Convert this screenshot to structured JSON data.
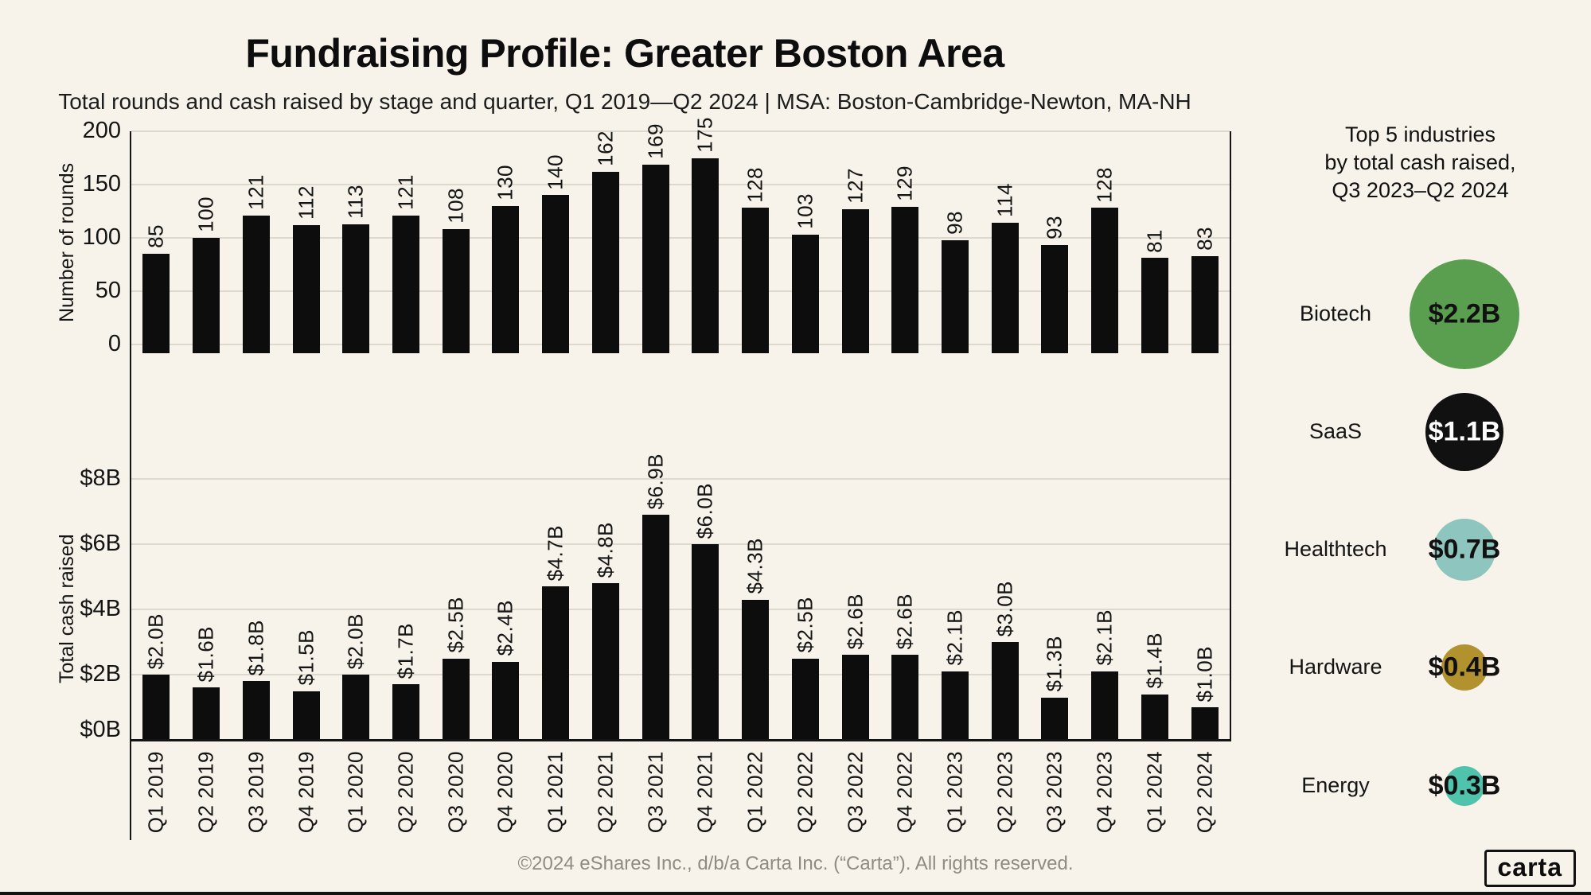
{
  "chart_data": {
    "type": "bar",
    "title": "Fundraising Profile: Greater Boston Area",
    "subtitle": "Total rounds and cash raised by stage and quarter, Q1 2019—Q2 2024 | MSA: Boston-Cambridge-Newton, MA-NH",
    "categories": [
      "Q1 2019",
      "Q2 2019",
      "Q3 2019",
      "Q4 2019",
      "Q1 2020",
      "Q2 2020",
      "Q3 2020",
      "Q4 2020",
      "Q1 2021",
      "Q2 2021",
      "Q3 2021",
      "Q4 2021",
      "Q1 2022",
      "Q2 2022",
      "Q3 2022",
      "Q4 2022",
      "Q1 2023",
      "Q2 2023",
      "Q3 2023",
      "Q4 2023",
      "Q1 2024",
      "Q2 2024"
    ],
    "series": [
      {
        "name": "Number of rounds",
        "values": [
          85,
          100,
          121,
          112,
          113,
          121,
          108,
          130,
          140,
          162,
          169,
          175,
          128,
          103,
          127,
          129,
          98,
          114,
          93,
          128,
          81,
          83
        ],
        "labels": [
          "85",
          "100",
          "121",
          "112",
          "113",
          "121",
          "108",
          "130",
          "140",
          "162",
          "169",
          "175",
          "128",
          "103",
          "127",
          "129",
          "98",
          "114",
          "93",
          "128",
          "81",
          "83"
        ],
        "yticks": [
          "200",
          "150",
          "100",
          "50",
          "0"
        ],
        "ylim": [
          0,
          200
        ]
      },
      {
        "name": "Total cash raised",
        "values": [
          2.0,
          1.6,
          1.8,
          1.5,
          2.0,
          1.7,
          2.5,
          2.4,
          4.7,
          4.8,
          6.9,
          6.0,
          4.3,
          2.5,
          2.6,
          2.6,
          2.1,
          3.0,
          1.3,
          2.1,
          1.4,
          1.0
        ],
        "labels": [
          "$2.0B",
          "$1.6B",
          "$1.8B",
          "$1.5B",
          "$2.0B",
          "$1.7B",
          "$2.5B",
          "$2.4B",
          "$4.7B",
          "$4.8B",
          "$6.9B",
          "$6.0B",
          "$4.3B",
          "$2.5B",
          "$2.6B",
          "$2.6B",
          "$2.1B",
          "$3.0B",
          "$1.3B",
          "$2.1B",
          "$1.4B",
          "$1.0B"
        ],
        "yticks": [
          "$8B",
          "$6B",
          "$4B",
          "$2B",
          "$0B"
        ],
        "ylim": [
          0,
          8
        ]
      }
    ],
    "grid": true,
    "legend": "none",
    "bar_color": "#0d0d0d"
  },
  "industry_panel": {
    "title": "Top 5 industries\nby total cash raised,\nQ3 2023–Q2 2024",
    "items": [
      {
        "name": "Biotech",
        "value": 2.2,
        "label": "$2.2B",
        "color": "#5a9e50",
        "text_color": "#111111"
      },
      {
        "name": "SaaS",
        "value": 1.1,
        "label": "$1.1B",
        "color": "#111111",
        "text_color": "#ffffff"
      },
      {
        "name": "Healthtech",
        "value": 0.7,
        "label": "$0.7B",
        "color": "#8fc5bf",
        "text_color": "#111111"
      },
      {
        "name": "Hardware",
        "value": 0.4,
        "label": "$0.4B",
        "color": "#b2922e",
        "text_color": "#111111"
      },
      {
        "name": "Energy",
        "value": 0.3,
        "label": "$0.3B",
        "color": "#4fc3ab",
        "text_color": "#111111"
      }
    ]
  },
  "footer": {
    "copyright": "©2024 eShares Inc., d/b/a Carta Inc. (“Carta”). All rights reserved.",
    "logo": "carta"
  },
  "colors": {
    "background": "#f7f3ea",
    "bar": "#0d0d0d",
    "grid": "#ded9cf",
    "footer_text": "#8f8b84"
  }
}
